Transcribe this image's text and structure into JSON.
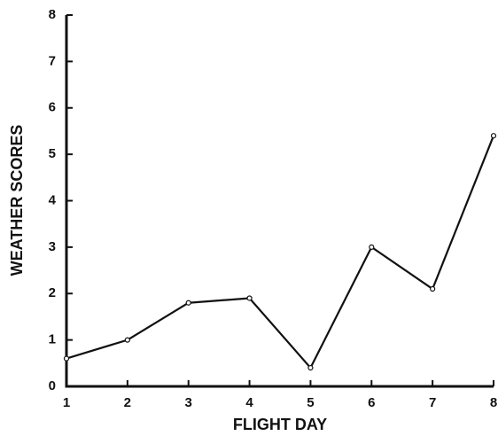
{
  "chart_data": {
    "type": "line",
    "x_label": "FLIGHT DAY",
    "y_label": "WEATHER SCORES",
    "x": [
      1,
      2,
      3,
      4,
      5,
      6,
      7,
      8
    ],
    "series": [
      {
        "color": "#111111",
        "values": [
          0.6,
          1.0,
          1.8,
          1.9,
          0.4,
          3.0,
          2.1,
          5.4
        ]
      }
    ],
    "xlim": [
      1,
      8
    ],
    "xticks": [
      1,
      2,
      3,
      4,
      5,
      6,
      7,
      8
    ],
    "ylim": [
      0,
      8
    ],
    "yticks": [
      0,
      1,
      2,
      3,
      4,
      5,
      6,
      7,
      8
    ],
    "grid": false
  }
}
